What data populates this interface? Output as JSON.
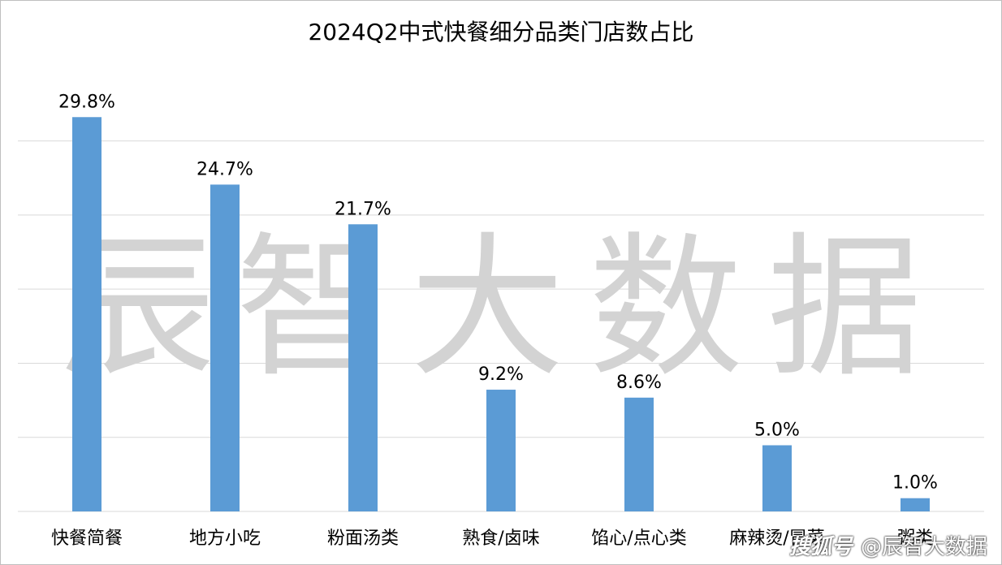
{
  "chart_data": {
    "type": "bar",
    "title": "2024Q2中式快餐细分品类门店数占比",
    "categories": [
      "快餐简餐",
      "地方小吃",
      "粉面汤类",
      "熟食/卤味",
      "馅心/点心类",
      "麻辣烫/冒菜",
      "粥类"
    ],
    "values": [
      29.8,
      24.7,
      21.7,
      9.2,
      8.6,
      5.0,
      1.0
    ],
    "data_labels": [
      "29.8%",
      "24.7%",
      "21.7%",
      "9.2%",
      "8.6%",
      "5.0%",
      "1.0%"
    ],
    "ylim": [
      0,
      30
    ],
    "gridlines": true,
    "legend": "none",
    "bar_color": "#5b9bd5"
  },
  "watermark": {
    "chars": [
      "辰",
      "智",
      "大",
      "数",
      "据"
    ],
    "footer_logo": "搜狐号",
    "footer_text": "@辰智大数据"
  }
}
